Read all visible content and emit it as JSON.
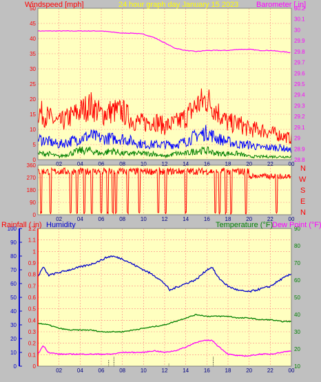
{
  "header": {
    "left": "Windspeed [mph]",
    "center": "24 hour graph day   January 15 2023",
    "right": "Barometer [.in]"
  },
  "lower_header": {
    "rainfall": "Rainfall (.in)",
    "humidity": "Humidity",
    "temperature": "Temperature (°F)",
    "dewpoint": "Dew Point (°F)"
  },
  "direction_labels": [
    "N",
    "W",
    "S",
    "E",
    "N"
  ],
  "colors": {
    "wind_gust": "#ff0000",
    "wind_avg": "#0000ff",
    "wind_low": "#008000",
    "barometer": "#ff00ff",
    "direction": "#ff0000",
    "humidity": "#0000cc",
    "temperature": "#008000",
    "dewpoint": "#ff00ff",
    "rain": "#000000",
    "header_left": "#ff0000",
    "header_center": "#ffff00",
    "header_right": "#ff00ff"
  },
  "chart_data": [
    {
      "type": "line",
      "x_ticks": [
        "02",
        "04",
        "06",
        "08",
        "10",
        "12",
        "14",
        "16",
        "18",
        "20",
        "22",
        "00"
      ],
      "left_axis": {
        "ticks": [
          "0",
          "5",
          "10",
          "15",
          "20",
          "25",
          "30",
          "35",
          "40",
          "45",
          "50"
        ],
        "ylim": [
          0,
          50
        ]
      },
      "right_axis": {
        "ticks": [
          "28.8",
          "28.9",
          "29",
          "29.1",
          "29.2",
          "29.3",
          "29.4",
          "29.5",
          "29.6",
          "29.7",
          "29.8",
          "29.9",
          "30",
          "30.1",
          "30.2"
        ],
        "ylim": [
          28.8,
          30.2
        ]
      },
      "grid": true,
      "series": [
        {
          "name": "Barometer",
          "axis": "right",
          "x": [
            0,
            1,
            2,
            3,
            4,
            5,
            6,
            7,
            8,
            9,
            10,
            11,
            12,
            13,
            14,
            15,
            16,
            17,
            18,
            19,
            20,
            21,
            22,
            23,
            24
          ],
          "values": [
            29.99,
            29.99,
            29.99,
            29.99,
            29.99,
            29.99,
            29.99,
            29.98,
            29.97,
            29.97,
            29.96,
            29.93,
            29.88,
            29.83,
            29.81,
            29.8,
            29.81,
            29.81,
            29.81,
            29.82,
            29.82,
            29.81,
            29.81,
            29.8,
            29.79
          ]
        },
        {
          "name": "",
          "role": "gust",
          "x": [
            0,
            1,
            2,
            3,
            4,
            5,
            6,
            7,
            8,
            9,
            10,
            11,
            12,
            13,
            14,
            15,
            16,
            17,
            18,
            19,
            20,
            21,
            22,
            23,
            24
          ],
          "values": [
            16,
            14,
            12,
            14,
            16,
            18,
            15,
            16,
            16,
            13,
            12,
            13,
            11,
            12,
            14,
            18,
            20,
            16,
            12,
            12,
            10,
            10,
            9,
            8,
            7
          ]
        },
        {
          "name": "",
          "role": "average",
          "x": [
            0,
            1,
            2,
            3,
            4,
            5,
            6,
            7,
            8,
            9,
            10,
            11,
            12,
            13,
            14,
            15,
            16,
            17,
            18,
            19,
            20,
            21,
            22,
            23,
            24
          ],
          "values": [
            7,
            6,
            5,
            6,
            7,
            8,
            7,
            7,
            7,
            6,
            5,
            5,
            5,
            5,
            6,
            8,
            9,
            7,
            6,
            5,
            5,
            4,
            4,
            4,
            3
          ]
        },
        {
          "name": "",
          "role": "low",
          "x": [
            0,
            1,
            2,
            3,
            4,
            5,
            6,
            7,
            8,
            9,
            10,
            11,
            12,
            13,
            14,
            15,
            16,
            17,
            18,
            19,
            20,
            21,
            22,
            23,
            24
          ],
          "values": [
            2,
            2,
            1,
            2,
            3,
            3,
            2,
            3,
            2,
            2,
            2,
            2,
            1,
            2,
            2,
            3,
            3,
            2,
            2,
            2,
            1,
            1,
            1,
            1,
            1
          ]
        }
      ]
    },
    {
      "type": "line",
      "x_ticks": [
        "02",
        "04",
        "06",
        "08",
        "10",
        "12",
        "14",
        "16",
        "18",
        "20",
        "22",
        "00"
      ],
      "left_axis": {
        "ticks": [
          "0",
          "90",
          "180",
          "270",
          "360"
        ],
        "ylim": [
          0,
          360
        ]
      },
      "grid": true,
      "series": [
        {
          "name": "",
          "role": "direction",
          "base": 315,
          "low_hours": [
            0.3,
            1.2,
            3.1,
            3.7,
            4.4,
            5.1,
            6.0,
            6.6,
            7.1,
            7.4,
            8.5,
            9.6,
            11.4,
            12.1,
            14.0,
            16.8,
            17.2,
            17.8,
            18.3,
            19.7,
            22.6
          ]
        }
      ]
    },
    {
      "type": "line",
      "x_ticks": [
        "02",
        "04",
        "06",
        "08",
        "10",
        "12",
        "14",
        "16",
        "18",
        "20",
        "22",
        "00"
      ],
      "far_left_axis": {
        "ticks": [
          "0",
          "10",
          "20",
          "30",
          "40",
          "50",
          "60",
          "70",
          "80",
          "90",
          "100"
        ],
        "ylim": [
          0,
          100
        ]
      },
      "left_axis": {
        "ticks": [
          "0",
          "0.1",
          "0.2",
          "0.3",
          "0.4",
          "0.5",
          "0.6",
          "0.7",
          "0.8",
          "0.9",
          "1",
          "1.1",
          "1.2"
        ],
        "ylim": [
          0,
          1.2
        ]
      },
      "right_axis": {
        "ticks": [
          "10",
          "20",
          "30",
          "40",
          "50",
          "60",
          "70",
          "80",
          "90"
        ],
        "ylim": [
          10,
          90
        ]
      },
      "grid": true,
      "series": [
        {
          "name": "Humidity",
          "axis": "far_left",
          "x": [
            0,
            0.5,
            1,
            2,
            3,
            4,
            5,
            6,
            6.5,
            7,
            8,
            9,
            10,
            11,
            12,
            12.5,
            13,
            14,
            15,
            16,
            16.5,
            17,
            18,
            19,
            20,
            21,
            22,
            23,
            24
          ],
          "values": [
            65,
            72,
            66,
            68,
            70,
            72,
            74,
            77,
            79,
            80,
            78,
            74,
            70,
            66,
            60,
            55,
            57,
            60,
            63,
            70,
            72,
            65,
            58,
            55,
            54,
            56,
            58,
            63,
            67
          ]
        },
        {
          "name": "Temperature",
          "axis": "right",
          "x": [
            0,
            1,
            2,
            3,
            4,
            5,
            6,
            7,
            8,
            9,
            10,
            11,
            12,
            13,
            14,
            15,
            16,
            17,
            18,
            19,
            20,
            21,
            22,
            23,
            24
          ],
          "values": [
            35,
            34,
            32,
            31,
            31,
            31,
            30,
            30,
            30,
            31,
            32,
            33,
            34,
            36,
            38,
            40,
            39,
            39,
            39,
            38,
            38,
            37,
            37,
            36,
            36
          ]
        },
        {
          "name": "Dew Point",
          "axis": "right",
          "x": [
            0,
            0.5,
            1,
            2,
            3,
            4,
            5,
            6,
            7,
            8,
            9,
            10,
            11,
            12,
            13,
            14,
            15,
            16,
            16.5,
            17,
            18,
            19,
            20,
            21,
            22,
            23,
            24
          ],
          "values": [
            17,
            22,
            18,
            17,
            17,
            17,
            17,
            17,
            17,
            18,
            18,
            18,
            19,
            18,
            19,
            21,
            24,
            25,
            25,
            22,
            17,
            16,
            16,
            17,
            17,
            18,
            19
          ]
        },
        {
          "name": "Rainfall",
          "axis": "left",
          "role": "rain-marks",
          "hours": [
            6.7,
            7.2,
            12.4,
            16.6
          ],
          "values": [
            0.06,
            0.08,
            0.02,
            0.08
          ]
        }
      ]
    }
  ]
}
